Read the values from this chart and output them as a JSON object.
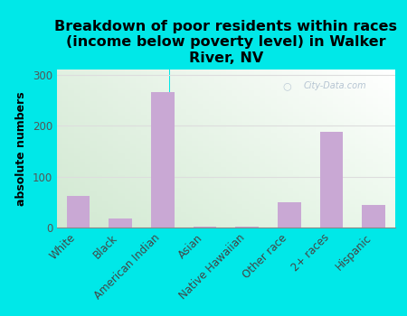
{
  "title": "Breakdown of poor residents within races\n(income below poverty level) in Walker\nRiver, NV",
  "ylabel": "absolute numbers",
  "categories": [
    "White",
    "Black",
    "American Indian",
    "Asian",
    "Native Hawaiian",
    "Other race",
    "2+ races",
    "Hispanic"
  ],
  "values": [
    62,
    18,
    265,
    2,
    2,
    50,
    187,
    45
  ],
  "bar_color": "#c9a8d4",
  "background_color": "#00e8e8",
  "plot_bg_topleft": "#d8ead8",
  "plot_bg_topright": "#ffffff",
  "plot_bg_bottomleft": "#d8ead8",
  "plot_bg_bottomright": "#ffffff",
  "yticks": [
    0,
    100,
    200,
    300
  ],
  "ylim": [
    0,
    310
  ],
  "grid_color": "#dddddd",
  "title_fontsize": 11.5,
  "label_fontsize": 8.5,
  "ylabel_fontsize": 9,
  "watermark": "City-Data.com"
}
